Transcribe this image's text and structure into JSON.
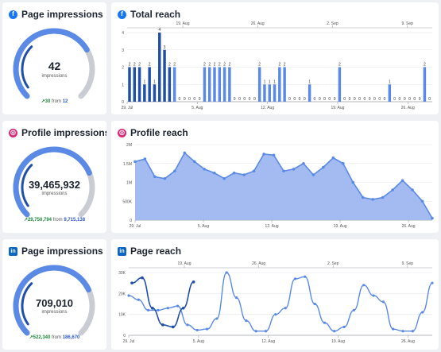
{
  "cards": {
    "page_impressions_fb": {
      "title": "Page impressions",
      "icon": "facebook-icon",
      "value": "42",
      "unit": "impressions",
      "delta": "30",
      "from_word": "from",
      "previous": "12",
      "gauge_fraction": 0.72
    },
    "profile_impressions_ig": {
      "title": "Profile impressions",
      "icon": "instagram-icon",
      "value": "39,465,932",
      "unit": "impressions",
      "delta": "29,750,794",
      "from_word": "from",
      "previous": "9,715,138",
      "gauge_fraction": 0.75
    },
    "page_impressions_li": {
      "title": "Page impressions",
      "icon": "linkedin-icon",
      "value": "709,010",
      "unit": "impressions",
      "delta": "522,340",
      "from_word": "from",
      "previous": "186,670",
      "gauge_fraction": 0.74
    }
  },
  "icons": {
    "facebook": "f",
    "instagram": "◎",
    "linkedin": "in",
    "trend_up": "↗"
  },
  "colors": {
    "primary": "#5a8ae6",
    "dark": "#1f4fa8",
    "area_fill": "#9ab4f0",
    "gauge_track": "#c9ccd2",
    "up": "#1a8a3a"
  },
  "chart_data": [
    {
      "type": "bar",
      "title": "Total reach",
      "icon": "facebook-icon",
      "ylim": [
        0,
        4
      ],
      "yticks": [
        0,
        1,
        2,
        3,
        4
      ],
      "x_ticks_bottom": [
        "29. Jul",
        "5. Aug",
        "12. Aug",
        "19. Aug",
        "26. Aug"
      ],
      "x_ticks_top": [
        "19. Aug",
        "26. Aug",
        "2. Sep",
        "9. Sep"
      ],
      "series": [
        {
          "values": [
            2,
            2,
            2,
            1,
            2,
            1,
            4,
            3,
            2,
            2,
            0,
            0,
            0,
            0,
            0,
            2,
            2,
            2,
            2,
            2,
            2,
            0,
            0,
            0,
            0,
            0,
            2,
            1,
            1,
            1,
            2,
            2,
            0,
            0,
            0,
            0,
            1,
            0,
            0,
            0,
            0,
            0,
            2,
            0,
            0,
            0,
            0,
            0,
            0,
            0,
            0,
            0,
            1,
            0,
            0,
            0,
            0,
            0,
            0,
            2,
            0
          ]
        },
        {
          "values": [
            2,
            2,
            2,
            1,
            2,
            1,
            3,
            2,
            2,
            0,
            0,
            0,
            0,
            0,
            0,
            0,
            0,
            0,
            0,
            0,
            0,
            0,
            0,
            0,
            0,
            0,
            0,
            0,
            0,
            0,
            0,
            0,
            0,
            0,
            0,
            0,
            0,
            0,
            0,
            0,
            0,
            0,
            0,
            0,
            0,
            0,
            0,
            0,
            0,
            0,
            0,
            0,
            0,
            0,
            0,
            0,
            0,
            0,
            0,
            0,
            0
          ]
        }
      ]
    },
    {
      "type": "area",
      "title": "Profile reach",
      "icon": "instagram-icon",
      "ylim": [
        0,
        2000000
      ],
      "ytick_labels": [
        "0",
        "500K",
        "1M",
        "1.5M",
        "2M"
      ],
      "yticks": [
        0,
        500000,
        1000000,
        1500000,
        2000000
      ],
      "x_ticks_bottom": [
        "29. Jul",
        "5. Aug",
        "12. Aug",
        "19. Aug",
        "26. Aug"
      ],
      "series": [
        {
          "values": [
            1550000,
            1620000,
            1150000,
            1100000,
            1300000,
            1780000,
            1550000,
            1350000,
            1250000,
            1100000,
            1250000,
            1200000,
            1300000,
            1750000,
            1720000,
            1300000,
            1350000,
            1500000,
            1200000,
            1400000,
            1650000,
            1500000,
            1000000,
            600000,
            550000,
            600000,
            800000,
            1050000,
            800000,
            500000,
            50000
          ]
        }
      ]
    },
    {
      "type": "line",
      "title": "Page reach",
      "icon": "linkedin-icon",
      "ylim": [
        0,
        30000
      ],
      "ytick_labels": [
        "0",
        "10K",
        "20K",
        "30K"
      ],
      "yticks": [
        0,
        10000,
        20000,
        30000
      ],
      "x_ticks_bottom": [
        "29. Jul",
        "5. Aug",
        "12. Aug",
        "19. Aug",
        "26. Aug"
      ],
      "x_ticks_top": [
        "19. Aug",
        "26. Aug",
        "2. Sep",
        "9. Sep"
      ],
      "series": [
        {
          "values": [
            19000,
            17000,
            12000,
            12000,
            13000,
            14000,
            5000,
            2500,
            3000,
            8000,
            30000,
            18000,
            7000,
            2000,
            2000,
            10000,
            13000,
            27000,
            28000,
            15000,
            6000,
            2000,
            4000,
            12000,
            24000,
            19000,
            16000,
            3000,
            2000,
            2000,
            11000,
            25000
          ]
        },
        {
          "values": [
            25000,
            27500,
            13000,
            5000,
            4000,
            13000,
            25500
          ]
        }
      ]
    }
  ]
}
